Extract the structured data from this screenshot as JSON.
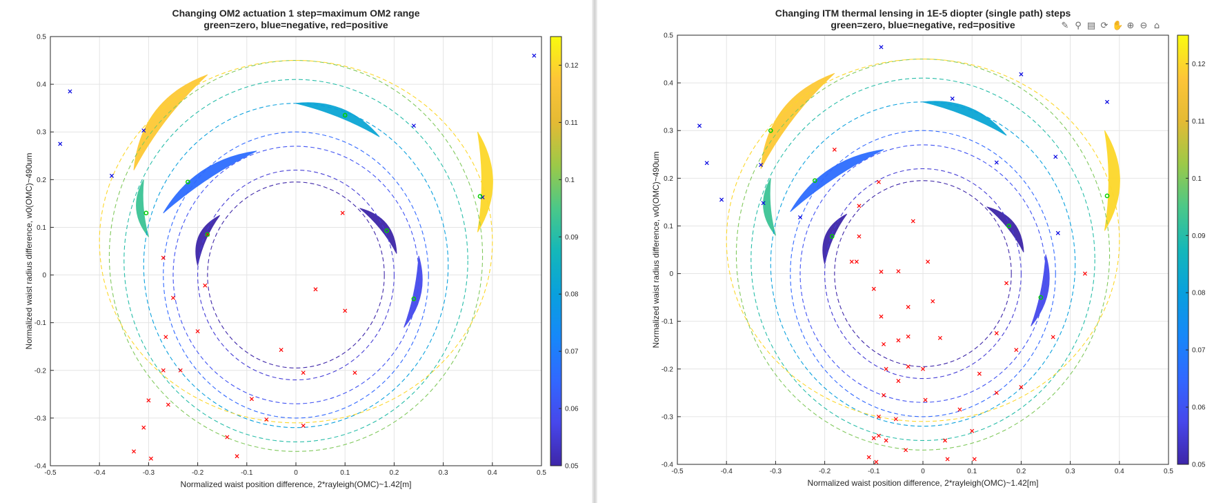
{
  "charts": [
    {
      "id": "left",
      "type": "scatter",
      "title_line1": "Changing OM2 actuation 1 step=maximum OM2 range",
      "title_line2": "green=zero, blue=negative, red=positive",
      "xlabel": "Normalized waist position difference, 2*rayleigh(OMC)~1.42[m]",
      "ylabel": "Normalized waist radius difference, w0(OMC)~490um",
      "xlim": [
        -0.5,
        0.5
      ],
      "ylim": [
        -0.4,
        0.5
      ],
      "xticks": [
        "-0.5",
        "-0.4",
        "-0.3",
        "-0.2",
        "-0.1",
        "0",
        "0.1",
        "0.2",
        "0.3",
        "0.4",
        "0.5"
      ],
      "yticks": [
        "-0.4",
        "-0.3",
        "-0.2",
        "-0.1",
        "0",
        "0.1",
        "0.2",
        "0.3",
        "0.4",
        "0.5"
      ],
      "colorbar": {
        "range": [
          0.05,
          0.125
        ],
        "ticks": [
          "0.05",
          "0.06",
          "0.07",
          "0.08",
          "0.09",
          "0.1",
          "0.11",
          "0.12"
        ]
      },
      "grid": true,
      "contours": [
        {
          "level": 0.05,
          "cx": 0.0,
          "cy": 0.0,
          "rx": 0.18,
          "ry": 0.195
        },
        {
          "level": 0.055,
          "cx": 0.0,
          "cy": 0.0,
          "rx": 0.2,
          "ry": 0.22
        },
        {
          "level": 0.06,
          "cx": 0.0,
          "cy": 0.0,
          "rx": 0.25,
          "ry": 0.27
        },
        {
          "level": 0.065,
          "cx": 0.0,
          "cy": 0.0,
          "rx": 0.27,
          "ry": 0.3
        },
        {
          "level": 0.08,
          "cx": 0.0,
          "cy": 0.02,
          "rx": 0.31,
          "ry": 0.34
        },
        {
          "level": 0.09,
          "cx": 0.0,
          "cy": 0.03,
          "rx": 0.35,
          "ry": 0.38
        },
        {
          "level": 0.1,
          "cx": 0.0,
          "cy": 0.04,
          "rx": 0.38,
          "ry": 0.41
        },
        {
          "level": 0.12,
          "cx": 0.0,
          "cy": 0.07,
          "rx": 0.4,
          "ry": 0.38
        }
      ],
      "regions": [
        {
          "level": 0.05,
          "x1": -0.2,
          "y1": 0.02,
          "x2": -0.155,
          "y2": 0.125,
          "w": 0.02
        },
        {
          "level": 0.05,
          "x1": 0.13,
          "y1": 0.14,
          "x2": 0.205,
          "y2": 0.045,
          "w": 0.02
        },
        {
          "level": 0.058,
          "x1": 0.25,
          "y1": 0.04,
          "x2": 0.22,
          "y2": -0.11,
          "w": 0.018
        },
        {
          "level": 0.066,
          "x1": -0.27,
          "y1": 0.13,
          "x2": -0.08,
          "y2": 0.26,
          "w": 0.025
        },
        {
          "level": 0.082,
          "x1": 0.0,
          "y1": 0.36,
          "x2": 0.17,
          "y2": 0.29,
          "w": 0.022
        },
        {
          "level": 0.093,
          "x1": -0.31,
          "y1": 0.2,
          "x2": -0.3,
          "y2": 0.08,
          "w": 0.018
        },
        {
          "level": 0.118,
          "x1": -0.33,
          "y1": 0.22,
          "x2": -0.18,
          "y2": 0.42,
          "w": 0.035
        },
        {
          "level": 0.12,
          "x1": 0.37,
          "y1": 0.3,
          "x2": 0.37,
          "y2": 0.09,
          "w": 0.028
        }
      ],
      "zero_points": {
        "x": [
          -0.305,
          -0.22,
          -0.18,
          0.1,
          0.185,
          0.24,
          0.375
        ],
        "y": [
          0.13,
          0.195,
          0.085,
          0.335,
          0.093,
          -0.05,
          0.165
        ]
      },
      "negative_points": {
        "x": [
          -0.48,
          -0.46,
          -0.375,
          -0.31,
          0.24,
          0.38,
          0.485
        ],
        "y": [
          0.275,
          0.385,
          0.208,
          0.303,
          0.313,
          0.163,
          0.46
        ]
      },
      "positive_points": {
        "x": [
          -0.18,
          -0.27,
          -0.25,
          -0.185,
          -0.265,
          -0.2,
          -0.27,
          -0.235,
          -0.26,
          -0.3,
          -0.31,
          -0.33,
          -0.295,
          -0.14,
          -0.12,
          -0.09,
          -0.06,
          -0.03,
          0.015,
          0.015,
          0.04,
          0.095,
          0.1,
          0.12
        ],
        "y": [
          0.085,
          0.036,
          -0.048,
          -0.022,
          -0.13,
          -0.118,
          -0.2,
          -0.2,
          -0.272,
          -0.263,
          -0.32,
          -0.37,
          -0.385,
          -0.34,
          -0.38,
          -0.26,
          -0.303,
          -0.157,
          -0.205,
          -0.316,
          -0.03,
          0.13,
          -0.075,
          -0.205
        ]
      }
    },
    {
      "id": "right",
      "type": "scatter",
      "title_line1": "Changing ITM thermal lensing in 1E-5 diopter (single path) steps",
      "title_line2": "green=zero, blue=negative, red=positive",
      "xlabel": "Normalized waist position difference, 2*rayleigh(OMC)~1.42[m]",
      "ylabel": "Normalized waist radius difference, w0(OMC)~490um",
      "xlim": [
        -0.5,
        0.5
      ],
      "ylim": [
        -0.4,
        0.5
      ],
      "xticks": [
        "-0.5",
        "-0.4",
        "-0.3",
        "-0.2",
        "-0.1",
        "0",
        "0.1",
        "0.2",
        "0.3",
        "0.4",
        "0.5"
      ],
      "yticks": [
        "-0.4",
        "-0.3",
        "-0.2",
        "-0.1",
        "0",
        "0.1",
        "0.2",
        "0.3",
        "0.4",
        "0.5"
      ],
      "colorbar": {
        "range": [
          0.05,
          0.125
        ],
        "ticks": [
          "0.05",
          "0.06",
          "0.07",
          "0.08",
          "0.09",
          "0.1",
          "0.11",
          "0.12"
        ]
      },
      "grid": true,
      "contours": [
        {
          "level": 0.05,
          "cx": 0.0,
          "cy": 0.0,
          "rx": 0.18,
          "ry": 0.195
        },
        {
          "level": 0.055,
          "cx": 0.0,
          "cy": 0.0,
          "rx": 0.2,
          "ry": 0.22
        },
        {
          "level": 0.06,
          "cx": 0.0,
          "cy": 0.0,
          "rx": 0.25,
          "ry": 0.27
        },
        {
          "level": 0.065,
          "cx": 0.0,
          "cy": 0.0,
          "rx": 0.27,
          "ry": 0.3
        },
        {
          "level": 0.08,
          "cx": 0.0,
          "cy": 0.02,
          "rx": 0.31,
          "ry": 0.34
        },
        {
          "level": 0.09,
          "cx": 0.0,
          "cy": 0.03,
          "rx": 0.35,
          "ry": 0.38
        },
        {
          "level": 0.1,
          "cx": 0.0,
          "cy": 0.04,
          "rx": 0.38,
          "ry": 0.41
        },
        {
          "level": 0.12,
          "cx": 0.0,
          "cy": 0.07,
          "rx": 0.4,
          "ry": 0.38
        }
      ],
      "regions": [
        {
          "level": 0.05,
          "x1": -0.2,
          "y1": 0.02,
          "x2": -0.155,
          "y2": 0.125,
          "w": 0.02
        },
        {
          "level": 0.05,
          "x1": 0.13,
          "y1": 0.14,
          "x2": 0.205,
          "y2": 0.045,
          "w": 0.02
        },
        {
          "level": 0.058,
          "x1": 0.25,
          "y1": 0.04,
          "x2": 0.22,
          "y2": -0.11,
          "w": 0.018
        },
        {
          "level": 0.066,
          "x1": -0.27,
          "y1": 0.13,
          "x2": -0.08,
          "y2": 0.26,
          "w": 0.025
        },
        {
          "level": 0.082,
          "x1": 0.0,
          "y1": 0.36,
          "x2": 0.17,
          "y2": 0.29,
          "w": 0.022
        },
        {
          "level": 0.093,
          "x1": -0.31,
          "y1": 0.2,
          "x2": -0.3,
          "y2": 0.08,
          "w": 0.018
        },
        {
          "level": 0.118,
          "x1": -0.33,
          "y1": 0.22,
          "x2": -0.18,
          "y2": 0.42,
          "w": 0.035
        },
        {
          "level": 0.12,
          "x1": 0.37,
          "y1": 0.3,
          "x2": 0.37,
          "y2": 0.09,
          "w": 0.028
        }
      ],
      "zero_points": {
        "x": [
          -0.31,
          -0.22,
          -0.185,
          0.175,
          0.24,
          0.375
        ],
        "y": [
          0.3,
          0.195,
          0.078,
          0.1,
          -0.05,
          0.163
        ]
      },
      "negative_points": {
        "x": [
          -0.455,
          -0.44,
          -0.41,
          -0.33,
          -0.325,
          -0.25,
          -0.085,
          0.06,
          0.15,
          0.2,
          0.27,
          0.275,
          0.375
        ],
        "y": [
          0.31,
          0.232,
          0.155,
          0.228,
          0.148,
          0.118,
          0.475,
          0.367,
          0.233,
          0.418,
          0.245,
          0.085,
          0.36
        ]
      },
      "positive_points": {
        "x": [
          -0.18,
          -0.13,
          -0.09,
          -0.135,
          -0.13,
          -0.085,
          -0.05,
          -0.02,
          0.01,
          -0.1,
          -0.085,
          -0.05,
          -0.03,
          -0.075,
          -0.03,
          0.02,
          -0.03,
          0.0,
          0.035,
          0.075,
          0.115,
          0.15,
          0.17,
          0.19,
          0.265,
          0.33,
          -0.08,
          -0.055,
          -0.09,
          -0.1,
          -0.075,
          -0.035,
          0.045,
          0.005,
          0.1,
          0.15,
          -0.11,
          -0.095,
          -0.09,
          -0.05,
          0.05,
          0.105,
          0.2,
          -0.145,
          -0.08
        ],
        "y": [
          0.26,
          0.142,
          0.192,
          0.025,
          0.078,
          0.004,
          0.005,
          0.11,
          0.025,
          -0.032,
          -0.09,
          -0.14,
          -0.132,
          -0.2,
          -0.195,
          -0.058,
          -0.07,
          -0.2,
          -0.135,
          -0.285,
          -0.21,
          -0.125,
          -0.02,
          -0.16,
          -0.133,
          0.0,
          -0.255,
          -0.305,
          -0.3,
          -0.345,
          -0.35,
          -0.37,
          -0.35,
          -0.265,
          -0.33,
          -0.25,
          -0.385,
          -0.395,
          -0.34,
          -0.225,
          -0.389,
          -0.389,
          -0.238,
          0.025,
          -0.148
        ]
      }
    }
  ],
  "toolbar_icons": [
    "brush-icon",
    "data-tip-icon",
    "legend-icon",
    "rotate-icon",
    "pan-icon",
    "zoom-in-icon",
    "zoom-out-icon",
    "home-icon"
  ],
  "colors": {
    "zero": "#00d000",
    "negative": "#0000e0",
    "positive": "#ff0000"
  }
}
